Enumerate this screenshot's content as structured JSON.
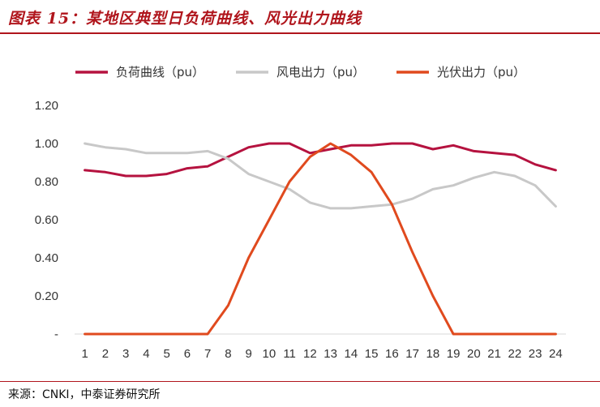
{
  "header": {
    "title": "图表 15：某地区典型日负荷曲线、风光出力曲线"
  },
  "footer": {
    "source": "来源：CNKI，中泰证券研究所"
  },
  "chart_data": {
    "type": "line",
    "x": [
      1,
      2,
      3,
      4,
      5,
      6,
      7,
      8,
      9,
      10,
      11,
      12,
      13,
      14,
      15,
      16,
      17,
      18,
      19,
      20,
      21,
      22,
      23,
      24
    ],
    "ylim": [
      0,
      1.2
    ],
    "yticks": [
      "-",
      "0.20",
      "0.40",
      "0.60",
      "0.80",
      "1.00",
      "1.20"
    ],
    "ytick_values": [
      0,
      0.2,
      0.4,
      0.6,
      0.8,
      1.0,
      1.2
    ],
    "grid": false,
    "legend_position": "top",
    "series": [
      {
        "name": "负荷曲线（pu）",
        "color": "#b5123f",
        "values": [
          0.86,
          0.85,
          0.83,
          0.83,
          0.84,
          0.87,
          0.88,
          0.93,
          0.98,
          1.0,
          1.0,
          0.95,
          0.97,
          0.99,
          0.99,
          1.0,
          1.0,
          0.97,
          0.99,
          0.96,
          0.95,
          0.94,
          0.89,
          0.86
        ]
      },
      {
        "name": "风电出力（pu）",
        "color": "#c8c8c8",
        "values": [
          1.0,
          0.98,
          0.97,
          0.95,
          0.95,
          0.95,
          0.96,
          0.92,
          0.84,
          0.8,
          0.76,
          0.69,
          0.66,
          0.66,
          0.67,
          0.68,
          0.71,
          0.76,
          0.78,
          0.82,
          0.85,
          0.83,
          0.78,
          0.67
        ]
      },
      {
        "name": "光伏出力（pu）",
        "color": "#e04a1e",
        "values": [
          0,
          0,
          0,
          0,
          0,
          0,
          0,
          0.15,
          0.4,
          0.6,
          0.8,
          0.93,
          1.0,
          0.94,
          0.85,
          0.68,
          0.43,
          0.2,
          0,
          0,
          0,
          0,
          0,
          0
        ]
      }
    ]
  }
}
